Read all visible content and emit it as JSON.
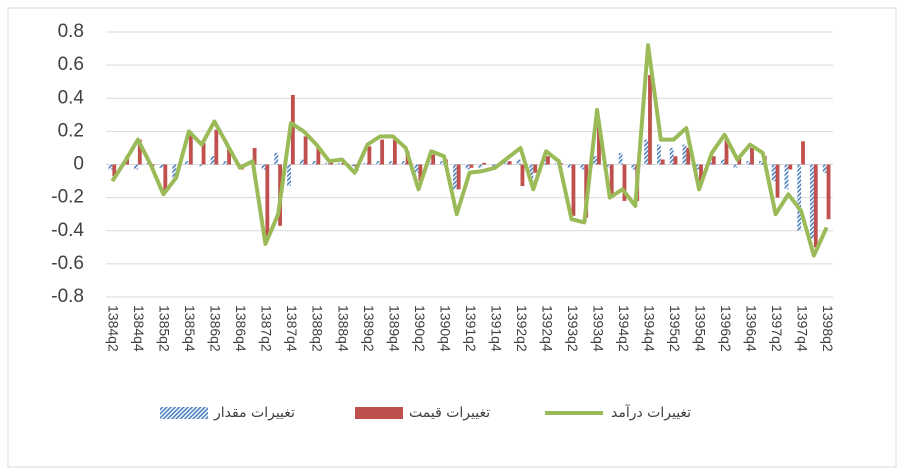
{
  "chart_data": {
    "type": "bar_line",
    "categories": [
      "1384q2",
      null,
      "1384q4",
      null,
      "1385q2",
      null,
      "1385q4",
      null,
      "1386q2",
      null,
      "1386q4",
      null,
      "1387q2",
      null,
      "1387q4",
      null,
      "1388q2",
      null,
      "1388q4",
      null,
      "1389q2",
      null,
      "1389q4",
      null,
      "1390q2",
      null,
      "1390q4",
      null,
      "1391q2",
      null,
      "1391q4",
      null,
      "1392q2",
      null,
      "1392q4",
      null,
      "1393q2",
      null,
      "1393q4",
      null,
      "1394q2",
      null,
      "1394q4",
      null,
      "1395q2",
      null,
      "1395q4",
      null,
      "1396q2",
      null,
      "1396q4",
      null,
      "1397q2",
      null,
      "1397q4",
      null,
      "1398q2"
    ],
    "series": [
      {
        "name": "تغییرات مقدار",
        "color": "#4f81bd",
        "kind": "bar",
        "pattern": "hatch",
        "values": [
          -0.03,
          0.01,
          -0.03,
          0.01,
          -0.02,
          -0.08,
          0.02,
          -0.01,
          0.05,
          0.02,
          0.01,
          0.01,
          -0.03,
          0.07,
          -0.13,
          0.03,
          0.02,
          0.01,
          0.01,
          -0.01,
          0.01,
          0.02,
          0.02,
          0.02,
          -0.05,
          0.02,
          0.02,
          -0.15,
          -0.03,
          -0.02,
          -0.01,
          0.02,
          0.03,
          -0.1,
          0.03,
          0.01,
          -0.02,
          -0.03,
          0.05,
          -0.02,
          0.07,
          -0.03,
          0.15,
          0.12,
          0.1,
          0.12,
          -0.03,
          0.02,
          0.03,
          -0.02,
          0.02,
          0.02,
          -0.1,
          -0.15,
          -0.4,
          -0.45,
          -0.05
        ]
      },
      {
        "name": "تغییرات قیمت",
        "color": "#c0504d",
        "kind": "bar",
        "values": [
          -0.07,
          0.05,
          0.15,
          -0.01,
          -0.16,
          0.0,
          0.18,
          0.13,
          0.21,
          0.1,
          -0.03,
          0.1,
          -0.45,
          -0.37,
          0.42,
          0.17,
          0.1,
          0.01,
          0.02,
          -0.04,
          0.11,
          0.15,
          0.15,
          0.08,
          -0.1,
          0.06,
          0.03,
          -0.15,
          -0.02,
          0.01,
          -0.01,
          0.02,
          -0.13,
          -0.05,
          0.05,
          0.01,
          -0.31,
          -0.32,
          0.24,
          -0.18,
          -0.22,
          -0.22,
          0.54,
          0.03,
          0.05,
          0.1,
          -0.12,
          0.05,
          0.15,
          0.05,
          0.1,
          0.05,
          -0.2,
          -0.03,
          0.14,
          -0.5,
          -0.33
        ]
      },
      {
        "name": "تغییرات درآمد",
        "color": "#9bbb59",
        "kind": "line",
        "values": [
          -0.1,
          0.02,
          0.15,
          0.0,
          -0.18,
          -0.08,
          0.2,
          0.12,
          0.26,
          0.12,
          -0.02,
          0.02,
          -0.48,
          -0.3,
          0.25,
          0.2,
          0.12,
          0.02,
          0.03,
          -0.05,
          0.12,
          0.17,
          0.17,
          0.1,
          -0.15,
          0.08,
          0.05,
          -0.3,
          -0.05,
          -0.04,
          -0.02,
          0.04,
          0.1,
          -0.15,
          0.08,
          0.02,
          -0.33,
          -0.35,
          0.33,
          -0.2,
          -0.15,
          -0.25,
          0.72,
          0.15,
          0.15,
          0.22,
          -0.15,
          0.07,
          0.18,
          0.03,
          0.12,
          0.07,
          -0.3,
          -0.18,
          -0.28,
          -0.55,
          -0.38
        ]
      }
    ],
    "ylim": [
      -0.8,
      0.8
    ],
    "yticks": [
      -0.8,
      -0.6,
      -0.4,
      -0.2,
      0,
      0.2,
      0.4,
      0.6,
      0.8
    ],
    "grid": true,
    "legend": "bottom"
  }
}
